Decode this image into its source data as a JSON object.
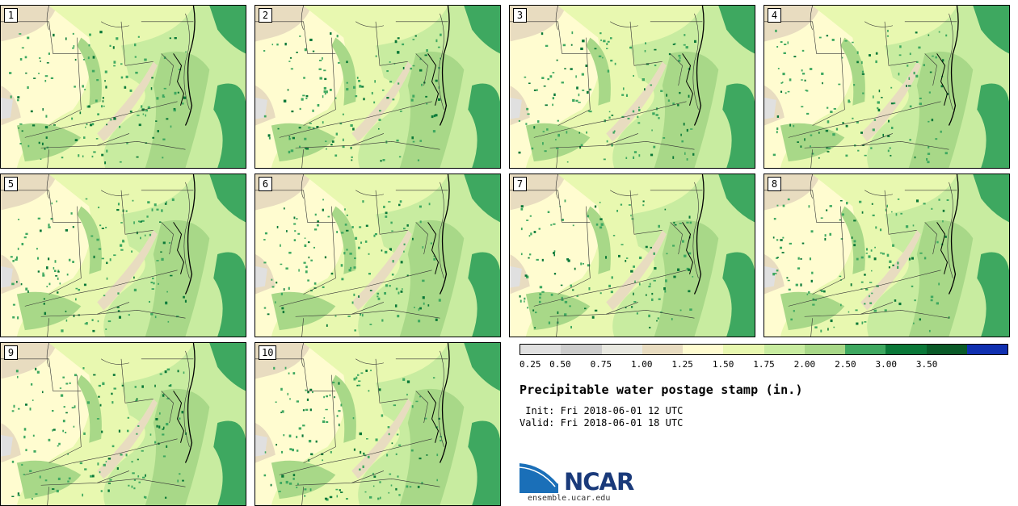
{
  "stamps": [
    {
      "label": "1"
    },
    {
      "label": "2"
    },
    {
      "label": "3"
    },
    {
      "label": "4"
    },
    {
      "label": "5"
    },
    {
      "label": "6"
    },
    {
      "label": "7"
    },
    {
      "label": "8"
    },
    {
      "label": "9"
    },
    {
      "label": "10"
    }
  ],
  "colorbar": {
    "colors": [
      "#e0e0e0",
      "#cccccc",
      "#e8e8e0",
      "#e8dcc0",
      "#fffcd0",
      "#e8f8b0",
      "#c8eca0",
      "#a8d888",
      "#3ea860",
      "#0a7838",
      "#0a5a28",
      "#1030b0"
    ],
    "tick_labels": [
      "0.25",
      "0.50",
      "0.75",
      "1.00",
      "1.25",
      "1.50",
      "1.75",
      "2.00",
      "2.50",
      "3.00",
      "3.50"
    ]
  },
  "title": "Precipitable water postage stamp (in.)",
  "init": " Init: Fri 2018-06-01 12 UTC",
  "valid": "Valid: Fri 2018-06-01 18 UTC",
  "logo": {
    "text": "NCAR",
    "url": "ensemble.ucar.edu"
  }
}
